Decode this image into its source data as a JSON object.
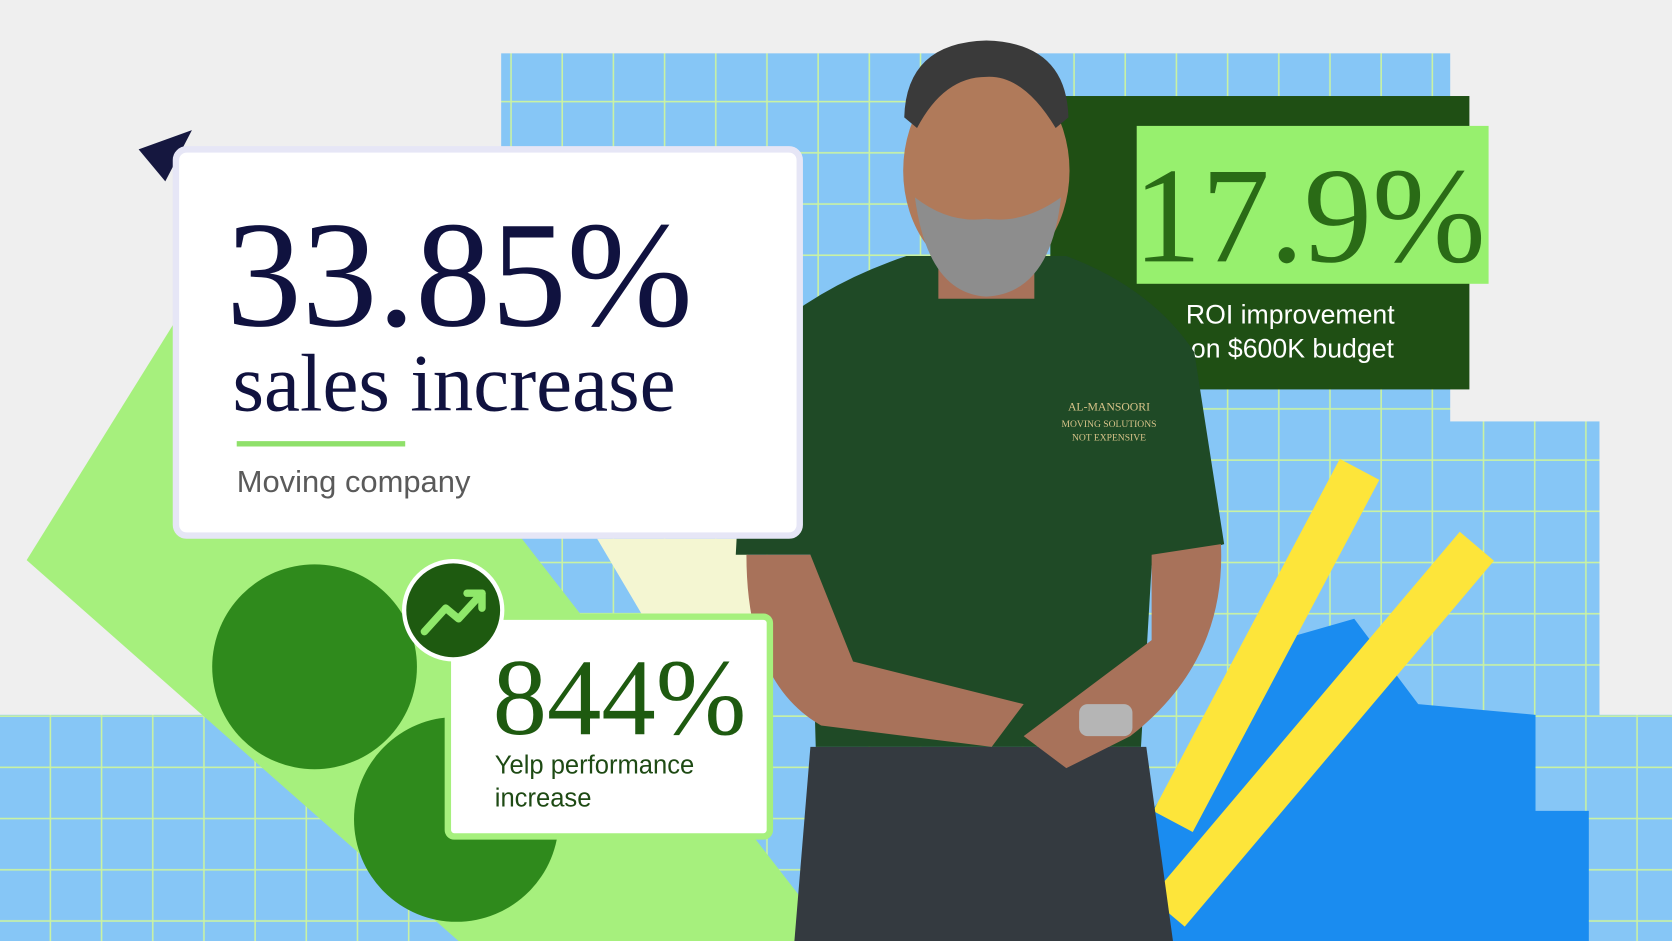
{
  "headline_stat": {
    "value": "33.85%",
    "label": "sales increase",
    "company": "Moving company"
  },
  "secondary_stat": {
    "value": "844%",
    "label_lines": [
      "Yelp performance",
      "increase"
    ]
  },
  "roi_stat": {
    "value": "17.9%",
    "label_lines": [
      "ROI improvement",
      "on $600K budget"
    ]
  },
  "shirt_logo": {
    "lines": [
      "AL-MANSOORI",
      "MOVING SOLUTIONS",
      "NOT EXPENSIVE"
    ]
  }
}
